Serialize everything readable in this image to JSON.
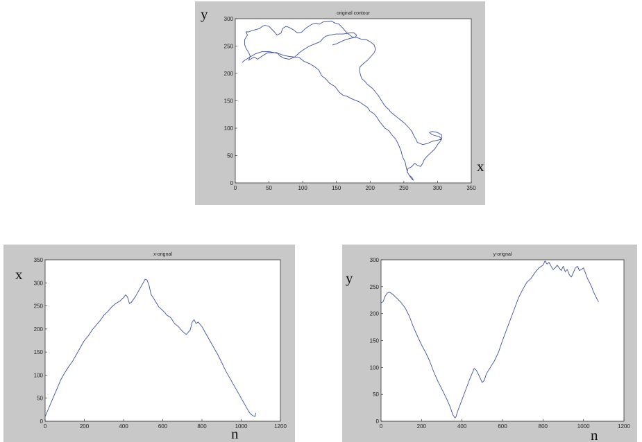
{
  "chart_data": [
    {
      "type": "line",
      "title": "original contour",
      "xlabel": "x",
      "ylabel": "y",
      "xlim": [
        0,
        350
      ],
      "ylim": [
        0,
        300
      ],
      "xticks": [
        0,
        50,
        100,
        150,
        200,
        250,
        300,
        350
      ],
      "yticks": [
        0,
        50,
        100,
        150,
        200,
        250,
        300
      ],
      "line_color": "#3a4fa0",
      "grid": false,
      "series": [
        {
          "x": [
            10,
            14,
            22,
            30,
            40,
            50,
            58,
            65,
            72,
            80,
            88,
            95,
            102,
            110,
            118,
            124,
            128,
            134,
            140,
            148,
            154,
            160,
            166,
            172,
            178,
            184,
            190,
            196,
            200,
            206,
            210,
            214,
            218,
            222,
            228,
            232,
            238,
            242,
            246,
            248,
            252,
            254,
            256,
            259,
            262,
            264,
            262,
            258,
            255,
            256,
            262,
            266,
            270,
            275,
            278,
            280,
            284,
            290,
            296,
            300,
            304,
            306,
            303,
            298,
            292,
            288,
            292,
            300,
            306,
            306,
            300,
            292,
            285,
            278,
            270,
            268,
            265,
            262,
            258,
            252,
            246,
            240,
            234,
            230,
            228,
            224,
            220,
            216,
            212,
            208,
            204,
            200,
            196,
            192,
            188,
            186,
            184,
            185,
            190,
            196,
            202,
            206,
            208,
            206,
            200,
            194,
            188,
            180,
            174,
            170,
            165,
            160,
            154,
            148,
            142,
            138,
            130,
            125,
            120,
            114,
            110,
            104,
            98,
            92,
            86,
            80,
            75,
            70,
            68,
            62,
            58,
            50,
            44,
            40,
            36,
            30,
            24,
            20,
            16,
            18,
            14,
            14,
            16,
            20,
            22,
            20,
            28,
            33,
            40,
            48,
            56,
            62,
            66,
            72,
            80,
            88,
            90,
            95,
            102,
            110,
            118,
            126,
            130,
            134,
            140,
            150,
            160,
            170,
            176,
            180,
            178,
            170,
            160,
            150,
            144
          ],
          "y": [
            220,
            224,
            230,
            236,
            240,
            240,
            238,
            236,
            233,
            231,
            230,
            229,
            222,
            218,
            212,
            206,
            196,
            190,
            182,
            176,
            166,
            160,
            158,
            154,
            151,
            148,
            143,
            138,
            131,
            126,
            120,
            112,
            106,
            100,
            95,
            88,
            80,
            70,
            58,
            48,
            38,
            26,
            18,
            12,
            7,
            5,
            10,
            14,
            20,
            26,
            30,
            36,
            32,
            30,
            36,
            42,
            48,
            55,
            62,
            70,
            76,
            80,
            84,
            86,
            88,
            92,
            94,
            92,
            88,
            80,
            78,
            76,
            72,
            70,
            74,
            80,
            86,
            94,
            100,
            108,
            114,
            120,
            126,
            130,
            134,
            138,
            144,
            152,
            160,
            166,
            172,
            176,
            180,
            186,
            190,
            196,
            206,
            212,
            218,
            224,
            232,
            238,
            244,
            252,
            258,
            262,
            262,
            266,
            266,
            270,
            275,
            282,
            290,
            292,
            296,
            295,
            294,
            290,
            292,
            290,
            287,
            282,
            275,
            274,
            280,
            284,
            286,
            282,
            274,
            270,
            276,
            286,
            288,
            286,
            282,
            280,
            278,
            276,
            276,
            270,
            262,
            252,
            246,
            238,
            232,
            224,
            230,
            226,
            232,
            238,
            238,
            238,
            232,
            228,
            226,
            230,
            232,
            238,
            244,
            250,
            254,
            258,
            264,
            268,
            270,
            272,
            272,
            274,
            274,
            270,
            266,
            264,
            260,
            254,
            252
          ]
        }
      ]
    },
    {
      "type": "line",
      "title": "x-orignal",
      "xlabel": "n",
      "ylabel": "x",
      "xlim": [
        0,
        1200
      ],
      "ylim": [
        0,
        350
      ],
      "xticks": [
        0,
        200,
        400,
        600,
        800,
        1000,
        1200
      ],
      "yticks": [
        0,
        50,
        100,
        150,
        200,
        250,
        300,
        350
      ],
      "line_color": "#3a4fa0",
      "grid": false,
      "series": [
        {
          "x": [
            0,
            20,
            40,
            60,
            80,
            100,
            120,
            140,
            160,
            180,
            200,
            220,
            240,
            260,
            280,
            300,
            320,
            340,
            360,
            380,
            400,
            410,
            420,
            430,
            440,
            460,
            480,
            500,
            510,
            520,
            530,
            540,
            560,
            580,
            600,
            610,
            620,
            640,
            660,
            680,
            700,
            720,
            740,
            750,
            760,
            770,
            780,
            800,
            820,
            840,
            860,
            880,
            900,
            920,
            940,
            960,
            980,
            1000,
            1020,
            1040,
            1050,
            1060,
            1070,
            1075
          ],
          "y": [
            10,
            30,
            50,
            70,
            90,
            105,
            118,
            130,
            145,
            160,
            175,
            185,
            198,
            208,
            218,
            230,
            238,
            248,
            255,
            260,
            268,
            274,
            270,
            255,
            258,
            270,
            285,
            300,
            308,
            306,
            295,
            275,
            262,
            248,
            240,
            236,
            230,
            225,
            212,
            205,
            195,
            188,
            198,
            215,
            220,
            212,
            215,
            205,
            190,
            175,
            160,
            145,
            128,
            110,
            95,
            80,
            65,
            50,
            35,
            20,
            15,
            12,
            10,
            18
          ]
        }
      ]
    },
    {
      "type": "line",
      "title": "y-orignal",
      "xlabel": "n",
      "ylabel": "y",
      "xlim": [
        0,
        1200
      ],
      "ylim": [
        0,
        300
      ],
      "xticks": [
        0,
        200,
        400,
        600,
        800,
        1000,
        1200
      ],
      "yticks": [
        0,
        50,
        100,
        150,
        200,
        250,
        300
      ],
      "line_color": "#3a4fa0",
      "grid": false,
      "series": [
        {
          "x": [
            0,
            10,
            20,
            30,
            40,
            50,
            60,
            80,
            100,
            120,
            140,
            160,
            180,
            200,
            220,
            240,
            260,
            280,
            300,
            320,
            340,
            355,
            365,
            370,
            380,
            400,
            420,
            440,
            460,
            470,
            480,
            490,
            500,
            510,
            520,
            540,
            560,
            580,
            600,
            620,
            640,
            660,
            680,
            700,
            720,
            740,
            760,
            780,
            800,
            810,
            820,
            830,
            840,
            850,
            860,
            870,
            880,
            890,
            900,
            910,
            920,
            930,
            940,
            950,
            960,
            970,
            980,
            990,
            1000,
            1010,
            1020,
            1030,
            1040,
            1050,
            1060,
            1070,
            1075
          ],
          "y": [
            220,
            222,
            232,
            238,
            240,
            238,
            235,
            228,
            220,
            210,
            195,
            175,
            158,
            142,
            128,
            112,
            92,
            75,
            60,
            45,
            28,
            12,
            6,
            8,
            20,
            40,
            60,
            80,
            98,
            95,
            88,
            80,
            72,
            76,
            88,
            100,
            112,
            128,
            150,
            170,
            190,
            210,
            230,
            245,
            258,
            265,
            276,
            285,
            290,
            298,
            292,
            295,
            288,
            282,
            285,
            290,
            285,
            280,
            288,
            278,
            282,
            272,
            268,
            276,
            285,
            288,
            280,
            282,
            285,
            275,
            265,
            258,
            250,
            240,
            232,
            225,
            222
          ]
        }
      ]
    }
  ]
}
